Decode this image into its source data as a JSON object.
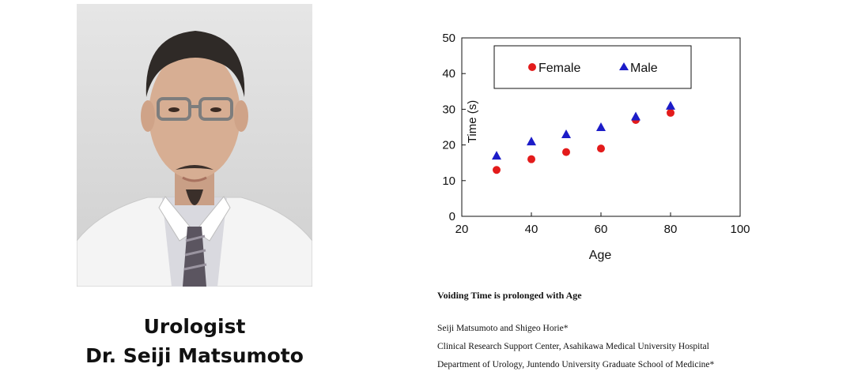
{
  "portrait": {
    "title_line": "Urologist",
    "name_line": "Dr. Seiji Matsumoto"
  },
  "paper": {
    "title": "Voiding Time is prolonged with Age",
    "authors": "Seiji Matsumoto and Shigeo Horie*",
    "affiliation_1": "Clinical Research Support Center, Asahikawa Medical University Hospital",
    "affiliation_2": "Department of Urology, Juntendo University Graduate School of Medicine*"
  },
  "chart_data": {
    "type": "scatter",
    "title": "",
    "xlabel": "Age",
    "ylabel": "Time (s)",
    "xlim": [
      20,
      100
    ],
    "ylim": [
      0,
      50
    ],
    "x_ticks": [
      20,
      40,
      60,
      80,
      100
    ],
    "y_ticks": [
      0,
      10,
      20,
      30,
      40,
      50
    ],
    "grid": false,
    "legend_position": "top",
    "series": [
      {
        "name": "Female",
        "marker": "circle",
        "color": "#e31b1b",
        "points": [
          [
            30,
            13
          ],
          [
            40,
            16
          ],
          [
            50,
            18
          ],
          [
            60,
            19
          ],
          [
            70,
            27
          ],
          [
            80,
            29
          ]
        ]
      },
      {
        "name": "Male",
        "marker": "triangle",
        "color": "#1c1cc8",
        "points": [
          [
            30,
            17
          ],
          [
            40,
            21
          ],
          [
            50,
            23
          ],
          [
            60,
            25
          ],
          [
            70,
            28
          ],
          [
            80,
            31
          ]
        ]
      }
    ]
  }
}
